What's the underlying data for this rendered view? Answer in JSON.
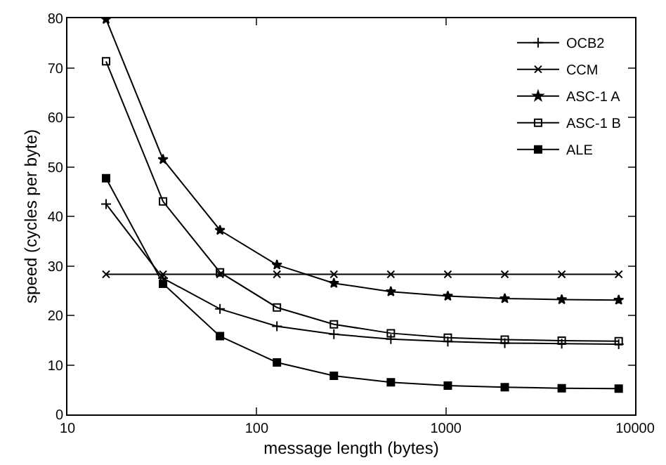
{
  "chart_data": {
    "type": "line",
    "xlabel": "message length (bytes)",
    "ylabel": "speed (cycles per byte)",
    "x": [
      16,
      32,
      64,
      128,
      256,
      512,
      1024,
      2048,
      4096,
      8192
    ],
    "series": [
      {
        "name": "OCB2",
        "color": "#000000",
        "marker": "cross",
        "values": [
          42.5,
          27.5,
          21.3,
          17.8,
          16.2,
          15.2,
          14.7,
          14.4,
          14.3,
          14.2
        ]
      },
      {
        "name": "CCM",
        "color": "#000000",
        "marker": "x",
        "values": [
          28.3,
          28.3,
          28.3,
          28.3,
          28.3,
          28.3,
          28.3,
          28.3,
          28.3,
          28.3
        ]
      },
      {
        "name": "ASC-1 A",
        "color": "#000000",
        "marker": "star",
        "values": [
          79.8,
          51.5,
          37.2,
          30.2,
          26.5,
          24.8,
          23.9,
          23.4,
          23.2,
          23.1
        ]
      },
      {
        "name": "ASC-1 B",
        "color": "#000000",
        "marker": "square-open",
        "values": [
          71.3,
          43,
          28.7,
          21.6,
          18.2,
          16.4,
          15.5,
          15.1,
          14.9,
          14.8
        ]
      },
      {
        "name": "ALE",
        "color": "#000000",
        "marker": "square",
        "values": [
          47.7,
          26.4,
          15.8,
          10.5,
          7.8,
          6.5,
          5.8,
          5.5,
          5.3,
          5.2
        ]
      }
    ],
    "log": "x",
    "xlim": [
      10,
      10000
    ],
    "xticks": [
      10,
      100,
      1000,
      10000
    ],
    "ylim": [
      0,
      80
    ],
    "yticks": [
      0,
      10,
      20,
      30,
      40,
      50,
      60,
      70,
      80
    ],
    "grid": false,
    "legend": "top right",
    "line_style": "solid"
  }
}
